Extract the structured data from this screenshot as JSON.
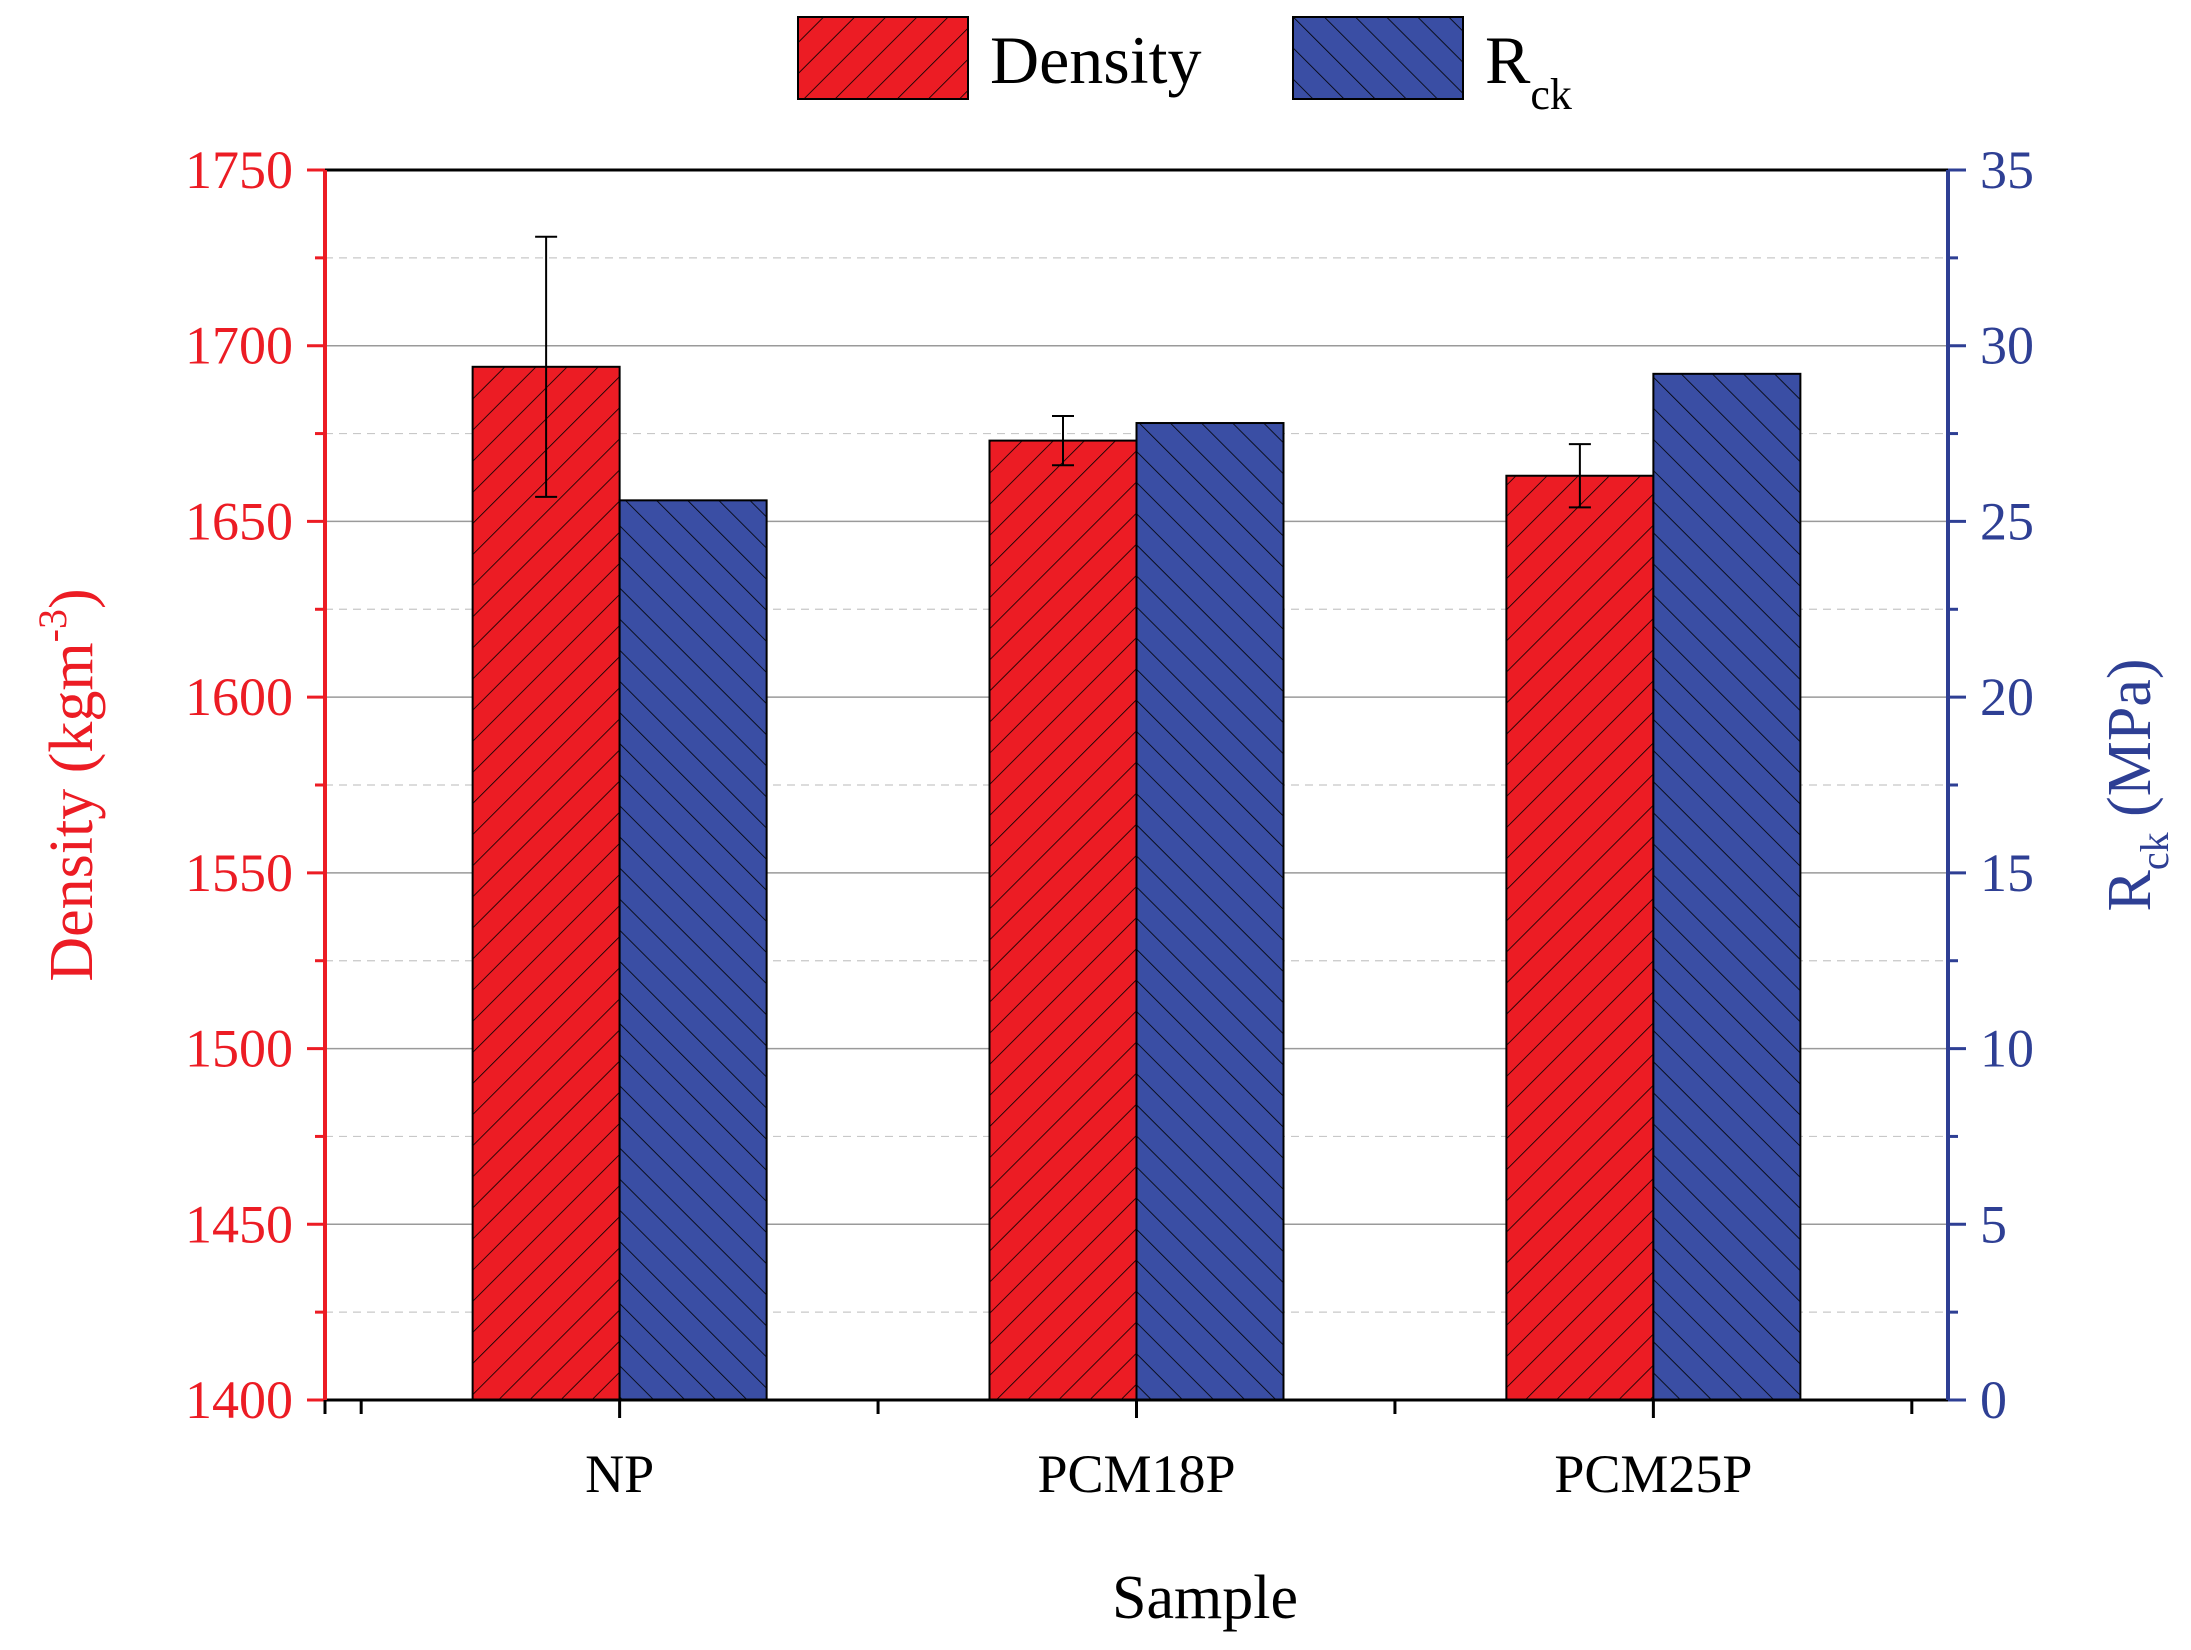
{
  "chart_data": {
    "type": "bar",
    "title": "",
    "xlabel": "Sample",
    "categories": [
      "NP",
      "PCM18P",
      "PCM25P"
    ],
    "series": [
      {
        "name": "Density",
        "axis": "left",
        "color": "#ec1c24",
        "values": [
          1694,
          1673,
          1663
        ],
        "error": [
          37,
          7,
          9
        ]
      },
      {
        "name": "R",
        "name_subscript": "ck",
        "axis": "right",
        "color": "#3a4ea4",
        "values": [
          25.6,
          27.8,
          29.2
        ]
      }
    ],
    "left_axis": {
      "label": "Density (kgm",
      "label_superscript": "-3",
      "label_suffix": ")",
      "color": "#ec1c24",
      "range": [
        1400,
        1750
      ],
      "ticks": [
        1400,
        1450,
        1500,
        1550,
        1600,
        1650,
        1700,
        1750
      ]
    },
    "right_axis": {
      "label": "R",
      "label_subscript": "ck",
      "label_suffix": " (MPa)",
      "color": "#2e3f94",
      "range": [
        0,
        35
      ],
      "ticks": [
        0,
        5,
        10,
        15,
        20,
        25,
        30,
        35
      ]
    },
    "grid": true,
    "legend_position": "top"
  }
}
